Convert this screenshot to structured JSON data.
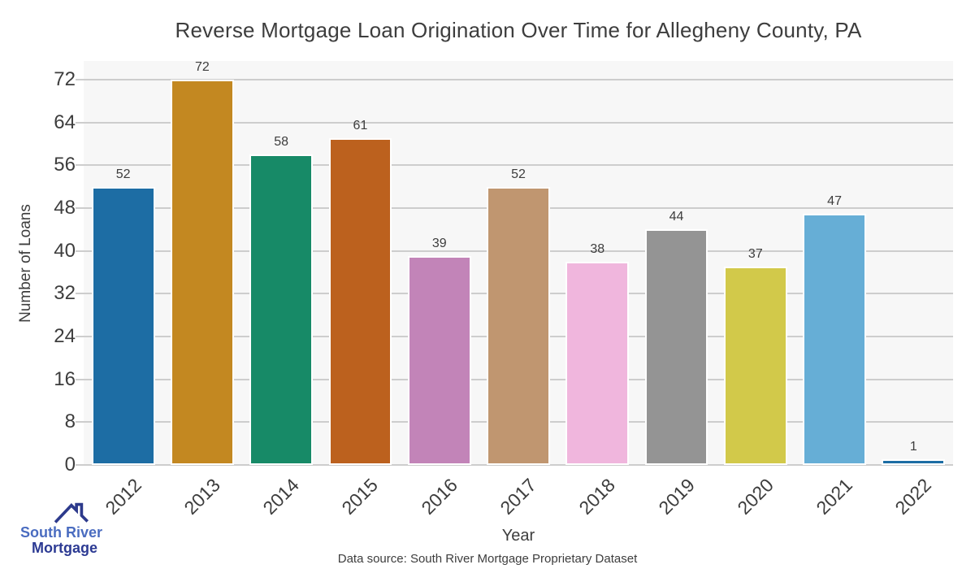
{
  "title": "Reverse Mortgage Loan Origination Over Time for Allegheny County, PA",
  "chart_data": {
    "type": "bar",
    "title": "Reverse Mortgage Loan Origination Over Time for Allegheny County, PA",
    "categories": [
      "2012",
      "2013",
      "2014",
      "2015",
      "2016",
      "2017",
      "2018",
      "2019",
      "2020",
      "2021",
      "2022"
    ],
    "values": [
      52,
      72,
      58,
      61,
      39,
      52,
      38,
      44,
      37,
      47,
      1
    ],
    "bar_colors": [
      "#1d6da4",
      "#c38821",
      "#178a67",
      "#bc611e",
      "#c284b8",
      "#c09670",
      "#f0b6dd",
      "#949494",
      "#d2c94a",
      "#66aed6",
      "#1d6da4"
    ],
    "xlabel": "Year",
    "ylabel": "Number of Loans",
    "ylim": [
      0,
      75.5
    ],
    "yticks": [
      0,
      8,
      16,
      24,
      32,
      40,
      48,
      56,
      64,
      72
    ],
    "grid": true,
    "legend": "none",
    "plot_background": "#f7f7f7",
    "gridline_color": "#cdcdcd"
  },
  "footer": {
    "source_text": "Data source: South River Mortgage Proprietary Dataset"
  },
  "logo": {
    "line1": "South River",
    "line2": "Mortgage",
    "line1_color": "#4a6cc0",
    "line2_color": "#2c3a93",
    "roof_color": "#2d3a8c"
  }
}
